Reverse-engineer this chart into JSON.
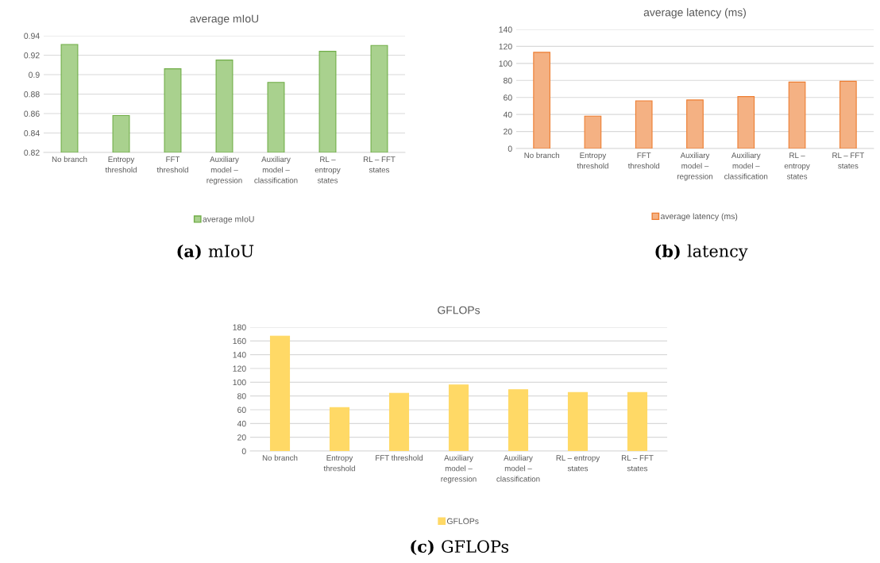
{
  "chart_data": [
    {
      "type": "bar",
      "title": "average mIoU",
      "categories": [
        "No branch",
        "Entropy threshold",
        "FFT threshold",
        "Auxiliary model – regression",
        "Auxiliary model – classification",
        "RL – entropy states",
        "RL – FFT states"
      ],
      "series": [
        {
          "name": "average mIoU",
          "color": "#a9d18e",
          "values": [
            0.931,
            0.858,
            0.906,
            0.915,
            0.892,
            0.924,
            0.93
          ]
        }
      ],
      "ylim": [
        0.82,
        0.94
      ],
      "yticks": [
        {
          "value": 0.82,
          "label": "0.82"
        },
        {
          "value": 0.84,
          "label": "0.84"
        },
        {
          "value": 0.86,
          "label": "0.86"
        },
        {
          "value": 0.88,
          "label": "0.88"
        },
        {
          "value": 0.9,
          "label": "0.9"
        },
        {
          "value": 0.92,
          "label": "0.92"
        },
        {
          "value": 0.94,
          "label": "0.94"
        }
      ],
      "grid": "y",
      "legend": "bottom",
      "annotations": [
        "(a) mIoU"
      ]
    },
    {
      "type": "bar",
      "title": "average latency (ms)",
      "categories": [
        "No branch",
        "Entropy threshold",
        "FFT threshold",
        "Auxiliary model – regression",
        "Auxiliary model – classification",
        "RL – entropy states",
        "RL – FFT states"
      ],
      "series": [
        {
          "name": "average latency (ms)",
          "color": "#f4b183",
          "values": [
            113,
            38,
            56,
            57,
            61,
            78,
            79
          ]
        }
      ],
      "ylim": [
        0,
        140
      ],
      "yticks": [
        0,
        20,
        40,
        60,
        80,
        100,
        120,
        140
      ],
      "grid": "y",
      "legend": "bottom",
      "annotations": [
        "(b) latency"
      ]
    },
    {
      "type": "bar",
      "title": "GFLOPs",
      "categories": [
        "No branch",
        "Entropy threshold",
        "FFT threshold",
        "Auxiliary model – regression",
        "Auxiliary model – classification",
        "RL – entropy states",
        "RL – FFT states"
      ],
      "series": [
        {
          "name": "GFLOPs",
          "color": "#ffd966",
          "values": [
            167,
            63,
            84,
            96,
            89,
            85,
            85
          ]
        }
      ],
      "ylim": [
        0,
        180
      ],
      "yticks": [
        0,
        20,
        40,
        60,
        80,
        100,
        120,
        140,
        160,
        180
      ],
      "grid": "y",
      "legend": "bottom",
      "annotations": [
        "(c) GFLOPs"
      ]
    }
  ]
}
